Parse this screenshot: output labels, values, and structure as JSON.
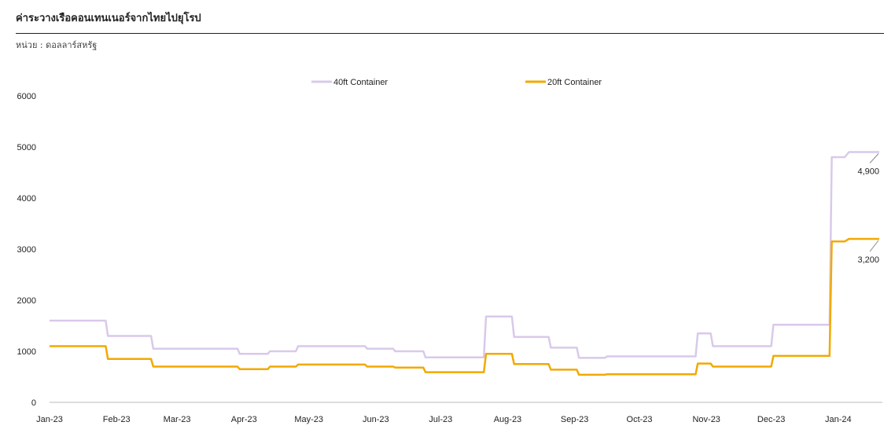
{
  "header": {
    "title": "ค่าระวางเรือคอนเทนเนอร์จากไทยไปยุโรป",
    "unit": "หน่วย : ดอลลาร์สหรัฐ"
  },
  "chart_data": {
    "type": "line",
    "ylim": [
      0,
      6000
    ],
    "yticks": [
      "0",
      "1000",
      "2000",
      "3000",
      "4000",
      "5000",
      "6000"
    ],
    "x_tick_labels": [
      "Jan-23",
      "Feb-23",
      "Mar-23",
      "Apr-23",
      "May-23",
      "Jun-23",
      "Jul-23",
      "Aug-23",
      "Sep-23",
      "Oct-23",
      "Nov-23",
      "Dec-23",
      "Jan-24"
    ],
    "legend_position": "top-center",
    "grid": false,
    "colors": {
      "40ft": "#d9c9ea",
      "20ft": "#f2a900",
      "axis": "#bbbbbb",
      "leader": "#888888"
    },
    "series": [
      {
        "name": "40ft Container",
        "points": [
          [
            "2023-01-01",
            1600
          ],
          [
            "2023-01-27",
            1600
          ],
          [
            "2023-01-28",
            1300
          ],
          [
            "2023-02-17",
            1300
          ],
          [
            "2023-02-18",
            1050
          ],
          [
            "2023-03-29",
            1050
          ],
          [
            "2023-03-30",
            950
          ],
          [
            "2023-04-12",
            950
          ],
          [
            "2023-04-13",
            1000
          ],
          [
            "2023-04-25",
            1000
          ],
          [
            "2023-04-26",
            1100
          ],
          [
            "2023-05-27",
            1100
          ],
          [
            "2023-05-28",
            1050
          ],
          [
            "2023-06-09",
            1050
          ],
          [
            "2023-06-10",
            1000
          ],
          [
            "2023-06-23",
            1000
          ],
          [
            "2023-06-24",
            880
          ],
          [
            "2023-07-21",
            880
          ],
          [
            "2023-07-22",
            1680
          ],
          [
            "2023-08-03",
            1680
          ],
          [
            "2023-08-04",
            1280
          ],
          [
            "2023-08-20",
            1280
          ],
          [
            "2023-08-21",
            1070
          ],
          [
            "2023-09-02",
            1070
          ],
          [
            "2023-09-03",
            870
          ],
          [
            "2023-09-15",
            870
          ],
          [
            "2023-09-16",
            900
          ],
          [
            "2023-10-27",
            900
          ],
          [
            "2023-10-28",
            1350
          ],
          [
            "2023-11-03",
            1350
          ],
          [
            "2023-11-04",
            1100
          ],
          [
            "2023-12-01",
            1100
          ],
          [
            "2023-12-02",
            1520
          ],
          [
            "2023-12-28",
            1520
          ],
          [
            "2023-12-29",
            4800
          ],
          [
            "2024-01-04",
            4800
          ],
          [
            "2024-01-06",
            4900
          ],
          [
            "2024-01-20",
            4900
          ]
        ],
        "end_label": "4,900"
      },
      {
        "name": "20ft Container",
        "points": [
          [
            "2023-01-01",
            1100
          ],
          [
            "2023-01-27",
            1100
          ],
          [
            "2023-01-28",
            850
          ],
          [
            "2023-02-17",
            850
          ],
          [
            "2023-02-18",
            700
          ],
          [
            "2023-03-29",
            700
          ],
          [
            "2023-03-30",
            650
          ],
          [
            "2023-04-12",
            650
          ],
          [
            "2023-04-13",
            700
          ],
          [
            "2023-04-25",
            700
          ],
          [
            "2023-04-26",
            740
          ],
          [
            "2023-05-27",
            740
          ],
          [
            "2023-05-28",
            700
          ],
          [
            "2023-06-09",
            700
          ],
          [
            "2023-06-10",
            680
          ],
          [
            "2023-06-23",
            680
          ],
          [
            "2023-06-24",
            590
          ],
          [
            "2023-07-21",
            590
          ],
          [
            "2023-07-22",
            950
          ],
          [
            "2023-08-03",
            950
          ],
          [
            "2023-08-04",
            750
          ],
          [
            "2023-08-20",
            750
          ],
          [
            "2023-08-21",
            640
          ],
          [
            "2023-09-02",
            640
          ],
          [
            "2023-09-03",
            540
          ],
          [
            "2023-09-15",
            540
          ],
          [
            "2023-09-16",
            550
          ],
          [
            "2023-10-27",
            550
          ],
          [
            "2023-10-28",
            760
          ],
          [
            "2023-11-03",
            760
          ],
          [
            "2023-11-04",
            700
          ],
          [
            "2023-12-01",
            700
          ],
          [
            "2023-12-02",
            910
          ],
          [
            "2023-12-28",
            910
          ],
          [
            "2023-12-29",
            3150
          ],
          [
            "2024-01-04",
            3150
          ],
          [
            "2024-01-06",
            3200
          ],
          [
            "2024-01-20",
            3200
          ]
        ],
        "end_label": "3,200"
      }
    ]
  }
}
